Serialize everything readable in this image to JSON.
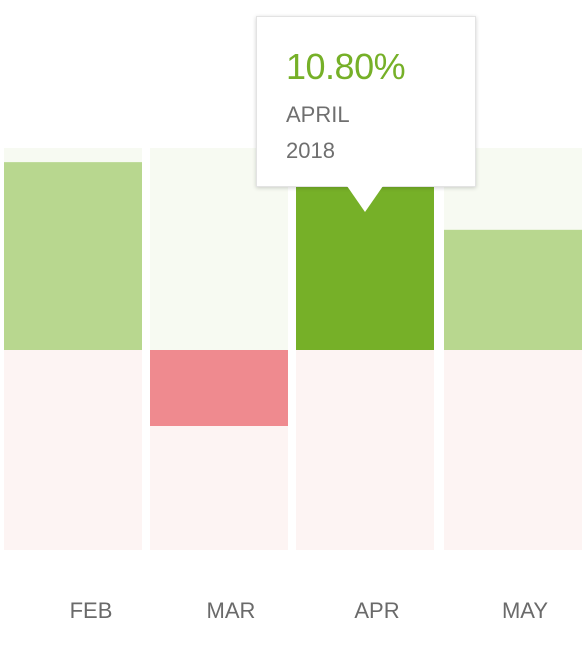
{
  "chart_data": {
    "type": "bar",
    "categories": [
      "FEB",
      "MAR",
      "APR",
      "MAY"
    ],
    "values": [
      9.3,
      -3.8,
      10.8,
      5.95
    ],
    "ylim": [
      -10,
      10
    ],
    "highlighted_index": 2,
    "colors": {
      "positive": "#b8d78f",
      "positive_highlight": "#76b028",
      "negative": "#ef8a8f",
      "positive_zone_bg": "#f7faf2",
      "negative_zone_bg": "#fdf4f3",
      "label": "#6a6a6a"
    },
    "tooltip": {
      "value": "10.80%",
      "month": "APRIL",
      "year": "2018",
      "value_color": "#76b028"
    }
  }
}
